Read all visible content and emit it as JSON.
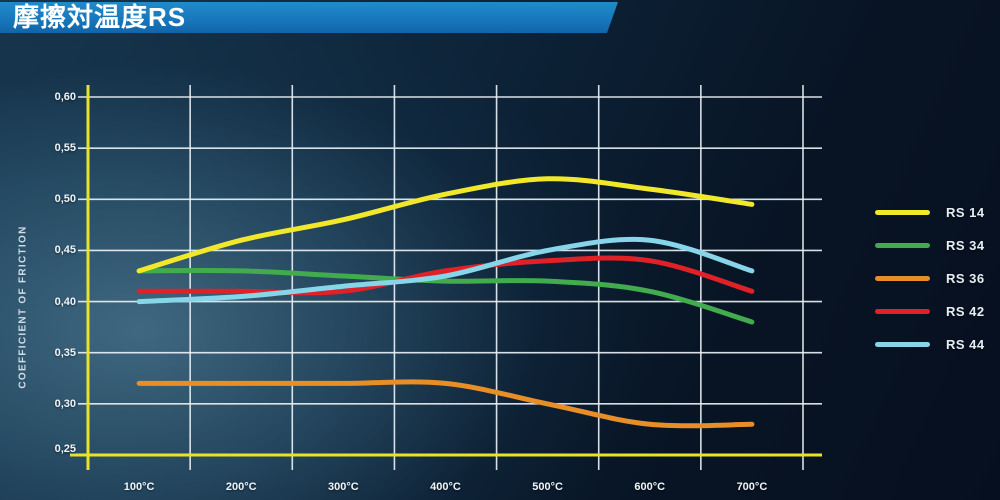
{
  "title": "摩擦対温度RS",
  "chart_data": {
    "type": "line",
    "title": "摩擦対温度RS",
    "xlabel": "",
    "ylabel": "COEFFICIENT OF FRICTION",
    "categories": [
      "100°C",
      "200°C",
      "300°C",
      "400°C",
      "500°C",
      "600°C",
      "700°C"
    ],
    "y_ticks": [
      "0,60",
      "0,55",
      "0,50",
      "0,45",
      "0,40",
      "0,35",
      "0,30",
      "0,25"
    ],
    "ylim": [
      0.25,
      0.6
    ],
    "grid": true,
    "legend_position": "right",
    "axis_color": "#e9e22c",
    "gridline_color": "#e9f0f5",
    "series": [
      {
        "name": "RS 14",
        "color": "#f2e82a",
        "values": [
          0.43,
          0.46,
          0.48,
          0.505,
          0.52,
          0.51,
          0.495
        ]
      },
      {
        "name": "RS 34",
        "color": "#41ab4d",
        "values": [
          0.43,
          0.43,
          0.425,
          0.42,
          0.42,
          0.41,
          0.38
        ]
      },
      {
        "name": "RS 36",
        "color": "#e78e26",
        "values": [
          0.32,
          0.32,
          0.32,
          0.32,
          0.3,
          0.28,
          0.28
        ]
      },
      {
        "name": "RS 42",
        "color": "#e02127",
        "values": [
          0.41,
          0.41,
          0.41,
          0.43,
          0.44,
          0.44,
          0.41
        ]
      },
      {
        "name": "RS 44",
        "color": "#86d5e9",
        "values": [
          0.4,
          0.405,
          0.415,
          0.425,
          0.45,
          0.46,
          0.43
        ]
      }
    ]
  }
}
